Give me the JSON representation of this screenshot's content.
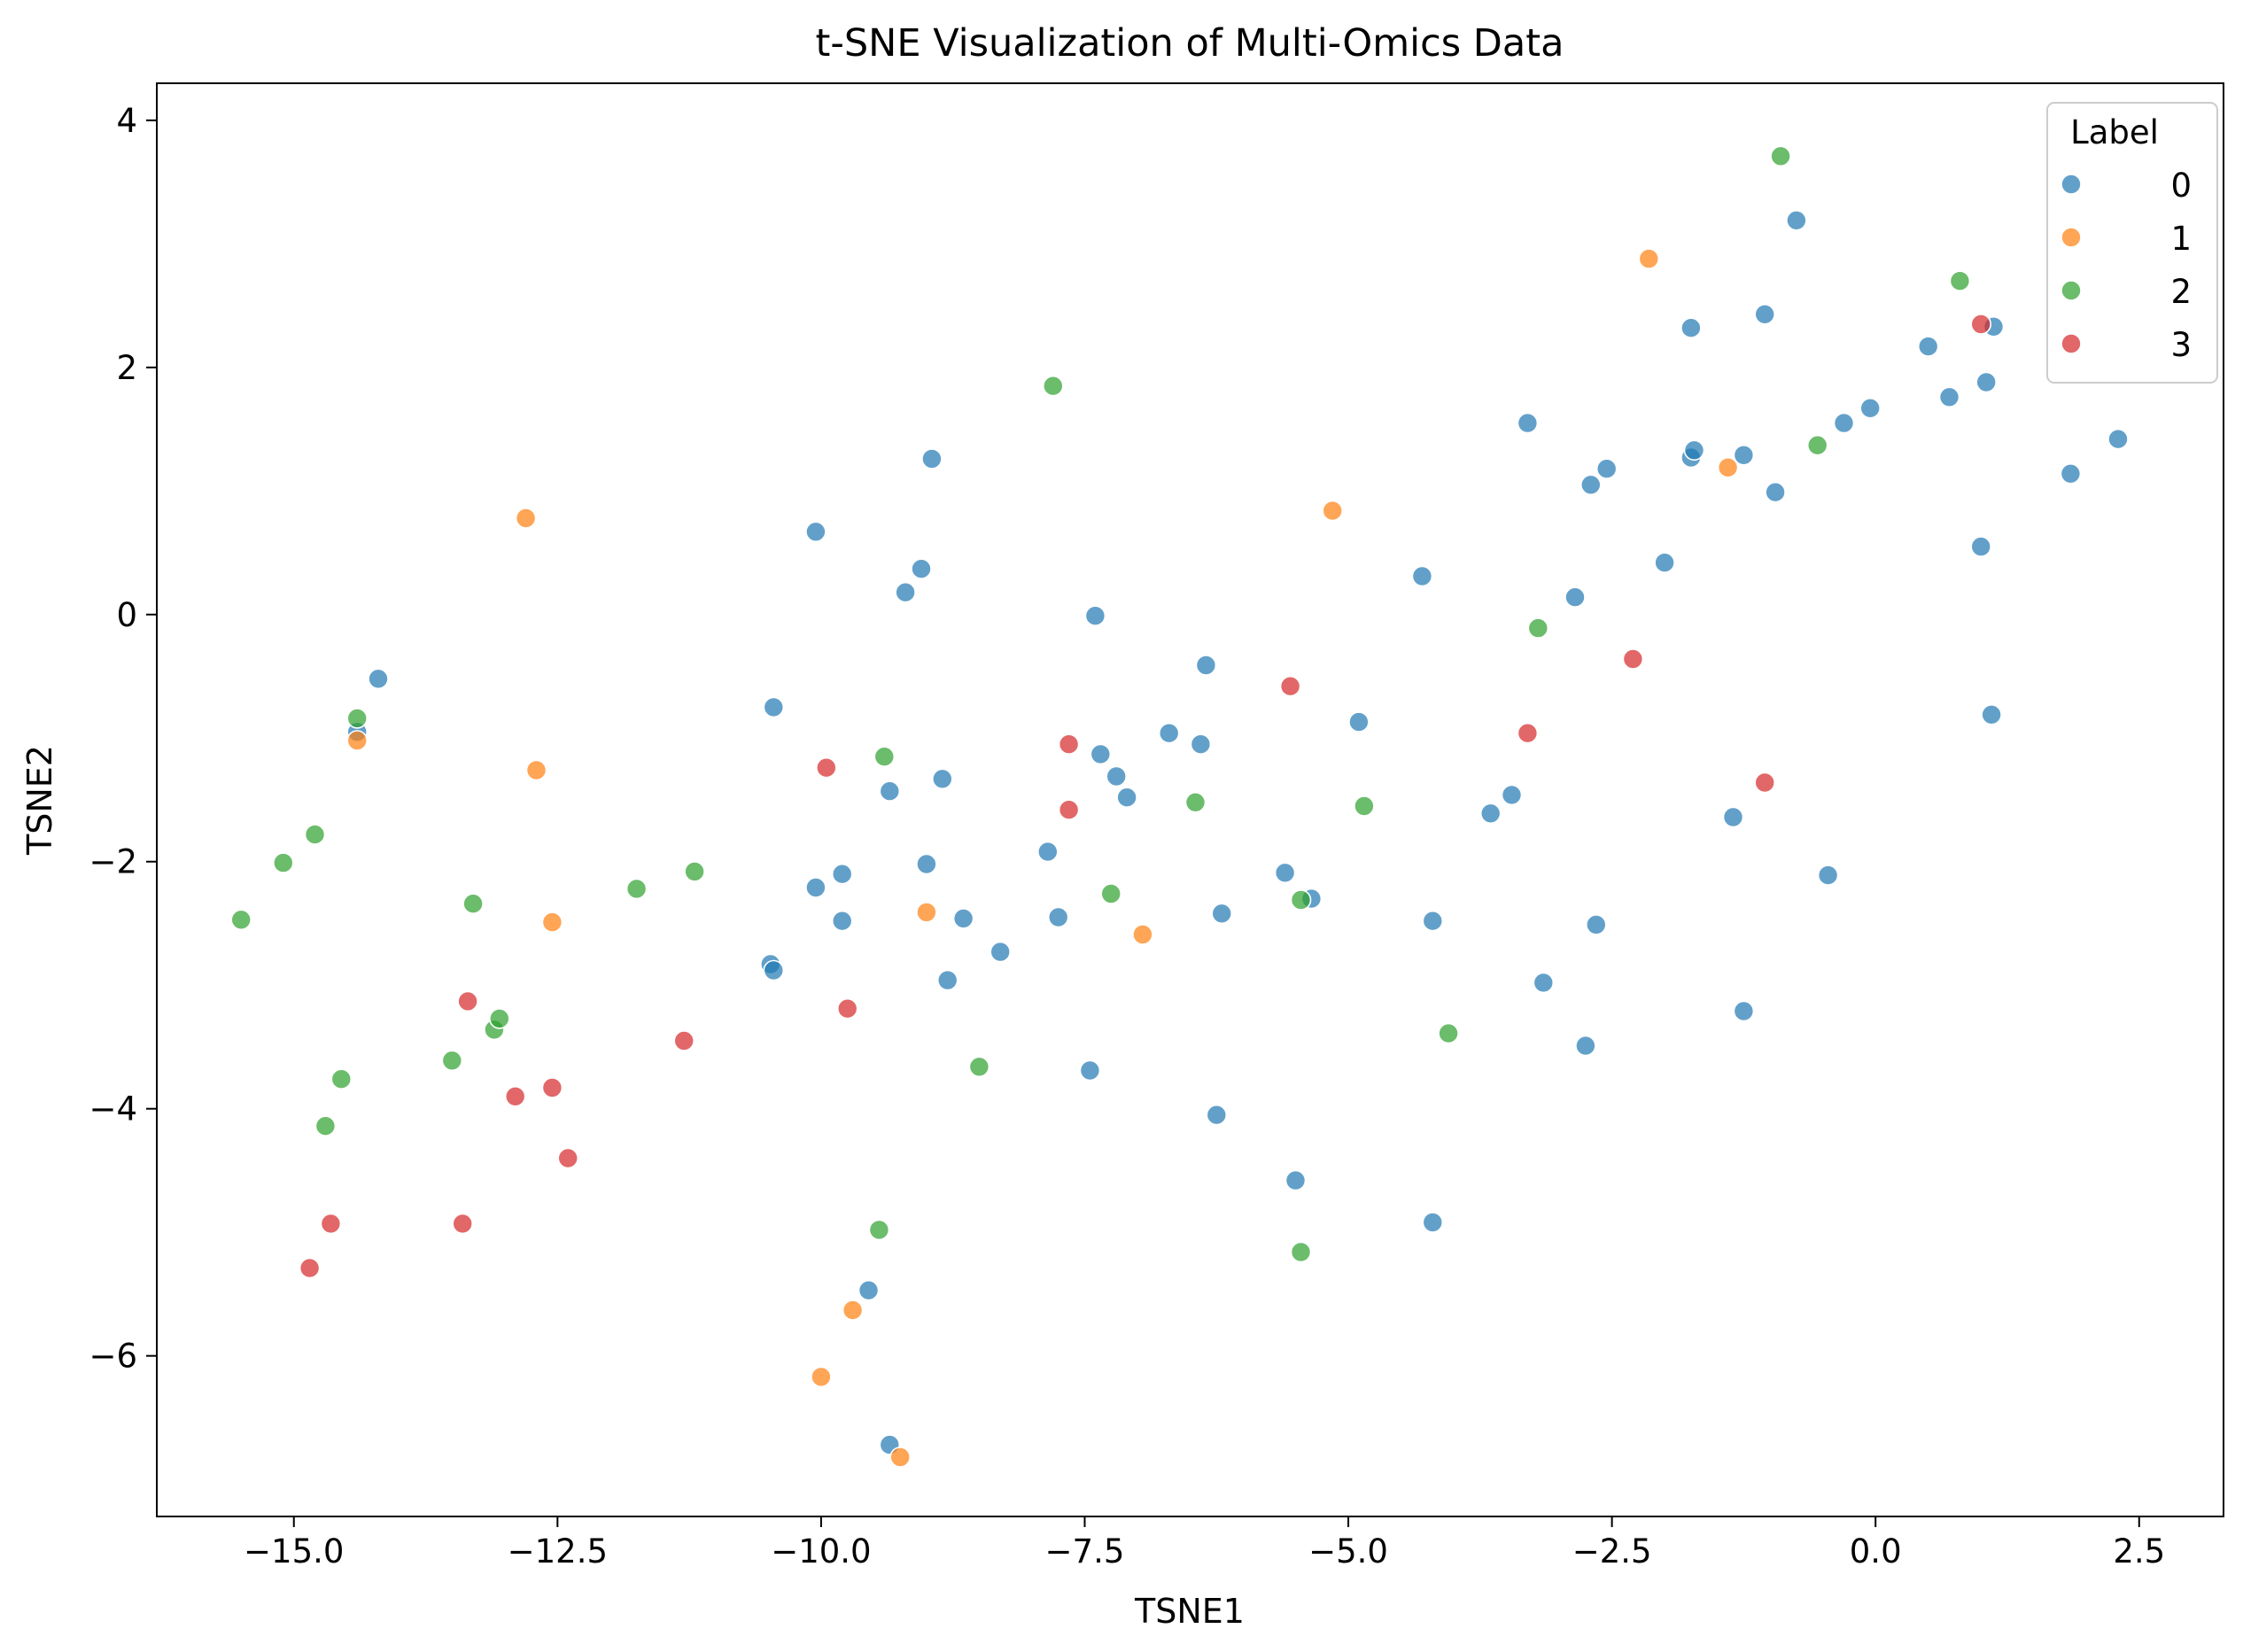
{
  "chart_data": {
    "type": "scatter",
    "title": "t-SNE Visualization of Multi-Omics Data",
    "xlabel": "TSNE1",
    "ylabel": "TSNE2",
    "xlim": [
      -16.3,
      3.3
    ],
    "ylim": [
      -7.3,
      4.3
    ],
    "xticks": [
      -15.0,
      -12.5,
      -10.0,
      -7.5,
      -5.0,
      -2.5,
      0.0,
      2.5
    ],
    "xtick_labels": [
      "−15.0",
      "−12.5",
      "−10.0",
      "−7.5",
      "−5.0",
      "−2.5",
      "0.0",
      "2.5"
    ],
    "yticks": [
      4,
      2,
      0,
      -2,
      -4,
      -6
    ],
    "ytick_labels": [
      "4",
      "2",
      "0",
      "−2",
      "−4",
      "−6"
    ],
    "grid": false,
    "legend": {
      "title": "Label",
      "placement": "top-right"
    },
    "series": [
      {
        "name": "0",
        "color": "#1f77b4",
        "points": [
          [
            -14.2,
            -0.52
          ],
          [
            -14.4,
            -0.95
          ],
          [
            -10.05,
            0.67
          ],
          [
            -8.95,
            1.26
          ],
          [
            -9.05,
            0.37
          ],
          [
            -9.2,
            0.18
          ],
          [
            -7.4,
            -0.01
          ],
          [
            -10.45,
            -0.75
          ],
          [
            -6.35,
            -0.41
          ],
          [
            -4.3,
            0.31
          ],
          [
            -4.9,
            -0.87
          ],
          [
            -6.7,
            -0.96
          ],
          [
            -6.4,
            -1.05
          ],
          [
            -7.35,
            -1.13
          ],
          [
            -7.2,
            -1.31
          ],
          [
            -7.1,
            -1.48
          ],
          [
            -9.35,
            -1.43
          ],
          [
            -8.85,
            -1.33
          ],
          [
            -10.05,
            -2.21
          ],
          [
            -9.8,
            -2.1
          ],
          [
            -9.8,
            -2.48
          ],
          [
            -9.0,
            -2.02
          ],
          [
            -7.85,
            -1.92
          ],
          [
            -8.65,
            -2.46
          ],
          [
            -7.75,
            -2.45
          ],
          [
            -8.3,
            -2.73
          ],
          [
            -8.8,
            -2.96
          ],
          [
            -10.48,
            -2.83
          ],
          [
            -10.45,
            -2.88
          ],
          [
            -5.6,
            -2.09
          ],
          [
            -5.35,
            -2.3
          ],
          [
            -6.2,
            -2.42
          ],
          [
            -4.2,
            -2.48
          ],
          [
            -3.65,
            -1.61
          ],
          [
            -3.45,
            -1.46
          ],
          [
            -2.65,
            -2.51
          ],
          [
            -3.15,
            -2.98
          ],
          [
            -2.75,
            -3.49
          ],
          [
            -1.25,
            -3.21
          ],
          [
            -0.45,
            -2.11
          ],
          [
            -1.35,
            -1.64
          ],
          [
            1.1,
            -0.81
          ],
          [
            -7.45,
            -3.69
          ],
          [
            -6.25,
            -4.05
          ],
          [
            -5.5,
            -4.58
          ],
          [
            -4.2,
            -4.92
          ],
          [
            -9.55,
            -5.47
          ],
          [
            -9.35,
            -6.72
          ],
          [
            -3.3,
            1.55
          ],
          [
            -2.7,
            1.05
          ],
          [
            -2.55,
            1.18
          ],
          [
            -1.75,
            1.27
          ],
          [
            -1.72,
            1.33
          ],
          [
            -1.25,
            1.29
          ],
          [
            -0.95,
            0.99
          ],
          [
            -2.85,
            0.14
          ],
          [
            -2.0,
            0.42
          ],
          [
            -1.75,
            2.32
          ],
          [
            -1.05,
            2.43
          ],
          [
            -0.75,
            3.19
          ],
          [
            -0.3,
            1.55
          ],
          [
            -0.05,
            1.67
          ],
          [
            0.5,
            2.17
          ],
          [
            0.7,
            1.76
          ],
          [
            1.05,
            1.88
          ],
          [
            1.12,
            2.33
          ],
          [
            1.0,
            0.55
          ],
          [
            1.85,
            1.14
          ],
          [
            2.3,
            1.42
          ]
        ]
      },
      {
        "name": "1",
        "color": "#ff7f0e",
        "points": [
          [
            -12.8,
            0.78
          ],
          [
            -12.7,
            -1.26
          ],
          [
            -14.4,
            -1.02
          ],
          [
            -12.55,
            -2.49
          ],
          [
            -9.0,
            -2.41
          ],
          [
            -6.95,
            -2.59
          ],
          [
            -5.15,
            0.84
          ],
          [
            -2.15,
            2.88
          ],
          [
            -1.4,
            1.19
          ],
          [
            -9.7,
            -5.63
          ],
          [
            -10.0,
            -6.17
          ],
          [
            -9.25,
            -6.82
          ]
        ]
      },
      {
        "name": "2",
        "color": "#2ca02c",
        "points": [
          [
            -14.4,
            -0.84
          ],
          [
            -14.8,
            -1.78
          ],
          [
            -15.1,
            -2.01
          ],
          [
            -15.5,
            -2.47
          ],
          [
            -13.3,
            -2.34
          ],
          [
            -11.75,
            -2.22
          ],
          [
            -11.2,
            -2.08
          ],
          [
            -13.1,
            -3.36
          ],
          [
            -13.05,
            -3.27
          ],
          [
            -13.5,
            -3.61
          ],
          [
            -14.55,
            -3.76
          ],
          [
            -14.7,
            -4.14
          ],
          [
            -9.4,
            -1.15
          ],
          [
            -7.8,
            1.85
          ],
          [
            -6.45,
            -1.52
          ],
          [
            -7.25,
            -2.26
          ],
          [
            -8.5,
            -3.66
          ],
          [
            -9.45,
            -4.98
          ],
          [
            -5.45,
            -2.31
          ],
          [
            -4.85,
            -1.55
          ],
          [
            -4.05,
            -3.39
          ],
          [
            -5.45,
            -5.16
          ],
          [
            -3.2,
            -0.11
          ],
          [
            -0.55,
            1.37
          ],
          [
            -0.9,
            3.71
          ],
          [
            0.8,
            2.7
          ]
        ]
      },
      {
        "name": "3",
        "color": "#d62728",
        "points": [
          [
            -9.95,
            -1.24
          ],
          [
            -7.65,
            -1.05
          ],
          [
            -7.65,
            -1.58
          ],
          [
            -5.55,
            -0.58
          ],
          [
            -3.3,
            -0.96
          ],
          [
            -2.3,
            -0.36
          ],
          [
            -1.05,
            -1.36
          ],
          [
            1.0,
            2.35
          ],
          [
            -9.75,
            -3.19
          ],
          [
            -11.3,
            -3.45
          ],
          [
            -13.35,
            -3.13
          ],
          [
            -12.55,
            -3.83
          ],
          [
            -12.9,
            -3.9
          ],
          [
            -12.4,
            -4.4
          ],
          [
            -13.4,
            -4.93
          ],
          [
            -14.65,
            -4.93
          ],
          [
            -14.85,
            -5.29
          ]
        ]
      }
    ]
  }
}
